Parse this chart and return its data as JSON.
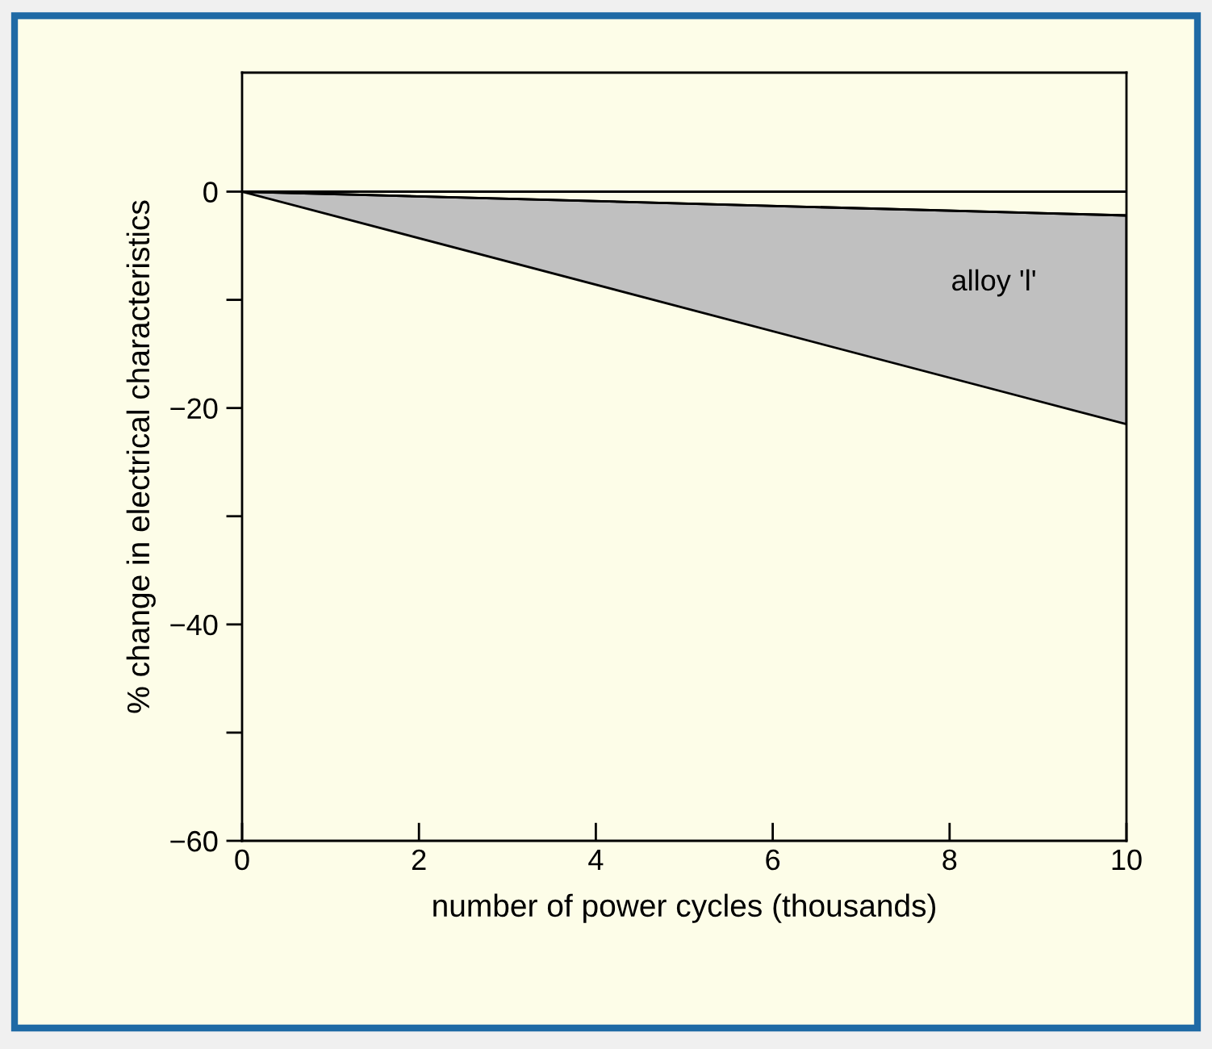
{
  "chart_data": {
    "type": "line",
    "xlabel": "number of power cycles (thousands)",
    "ylabel": "% change in electrical characteristics",
    "series": [
      {
        "name": "alloy 'l'",
        "color": "#000000",
        "x": [
          0,
          10
        ],
        "values": [
          0,
          -2.2
        ],
        "lower": [
          0,
          -21.5
        ],
        "upper": [
          0,
          -2.2
        ]
      }
    ],
    "xlim": [
      0,
      10
    ],
    "ylim": [
      -60,
      11
    ],
    "xticks": [
      0,
      2,
      4,
      6,
      8,
      10
    ],
    "yticks": [
      {
        "value": -60,
        "label": "−60"
      },
      {
        "value": -50,
        "label": null
      },
      {
        "value": -40,
        "label": "−40"
      },
      {
        "value": -30,
        "label": null
      },
      {
        "value": -20,
        "label": "−20"
      },
      {
        "value": -10,
        "label": null
      },
      0
    ],
    "ref_lines": [
      {
        "axis": "y",
        "value": 0,
        "color": "#000000",
        "line_style": "solid"
      }
    ],
    "grid": false,
    "legend": false
  }
}
